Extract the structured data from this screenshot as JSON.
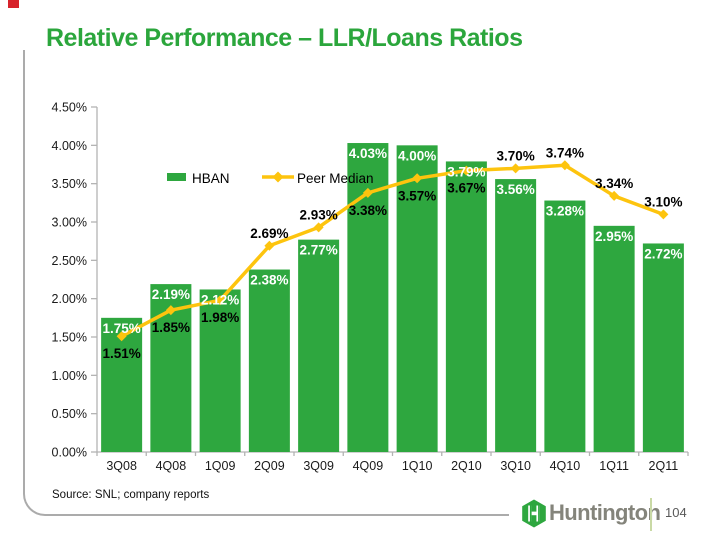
{
  "slide": {
    "title": "Relative Performance – LLR/Loans Ratios",
    "source_note": "Source: SNL; company reports",
    "brand_name": "Huntington",
    "page_number": "104"
  },
  "colors": {
    "title_green": "#2BA63C",
    "bar_green": "#2EA73F",
    "line_yellow": "#FDC40E",
    "axis_gray": "#B3B3B3",
    "frame_gray": "#ABABAB",
    "corner_marker_red": "#D7232B",
    "brand_text_gray": "#84847B"
  },
  "chart_data": {
    "type": "bar",
    "title": "",
    "xlabel": "",
    "ylabel": "",
    "categories": [
      "3Q08",
      "4Q08",
      "1Q09",
      "2Q09",
      "3Q09",
      "4Q09",
      "1Q10",
      "2Q10",
      "3Q10",
      "4Q10",
      "1Q11",
      "2Q11"
    ],
    "series": [
      {
        "name": "HBAN",
        "type": "bar",
        "color": "#2EA73F",
        "label_color": "#FFFFFF",
        "values": [
          1.75,
          2.19,
          2.12,
          2.38,
          2.77,
          4.03,
          4.0,
          3.79,
          3.56,
          3.28,
          2.95,
          2.72
        ]
      },
      {
        "name": "Peer Median",
        "type": "line",
        "color": "#FDC40E",
        "label_color": "#000000",
        "values": [
          1.51,
          1.85,
          1.98,
          2.69,
          2.93,
          3.38,
          3.57,
          3.67,
          3.7,
          3.74,
          3.34,
          3.1
        ]
      }
    ],
    "ylim": [
      0,
      4.5
    ],
    "ytick_step": 0.5,
    "ytick_format": "0.00%",
    "value_label_format": "0.00%",
    "grid": false,
    "legend_position": "inside-top-left"
  }
}
